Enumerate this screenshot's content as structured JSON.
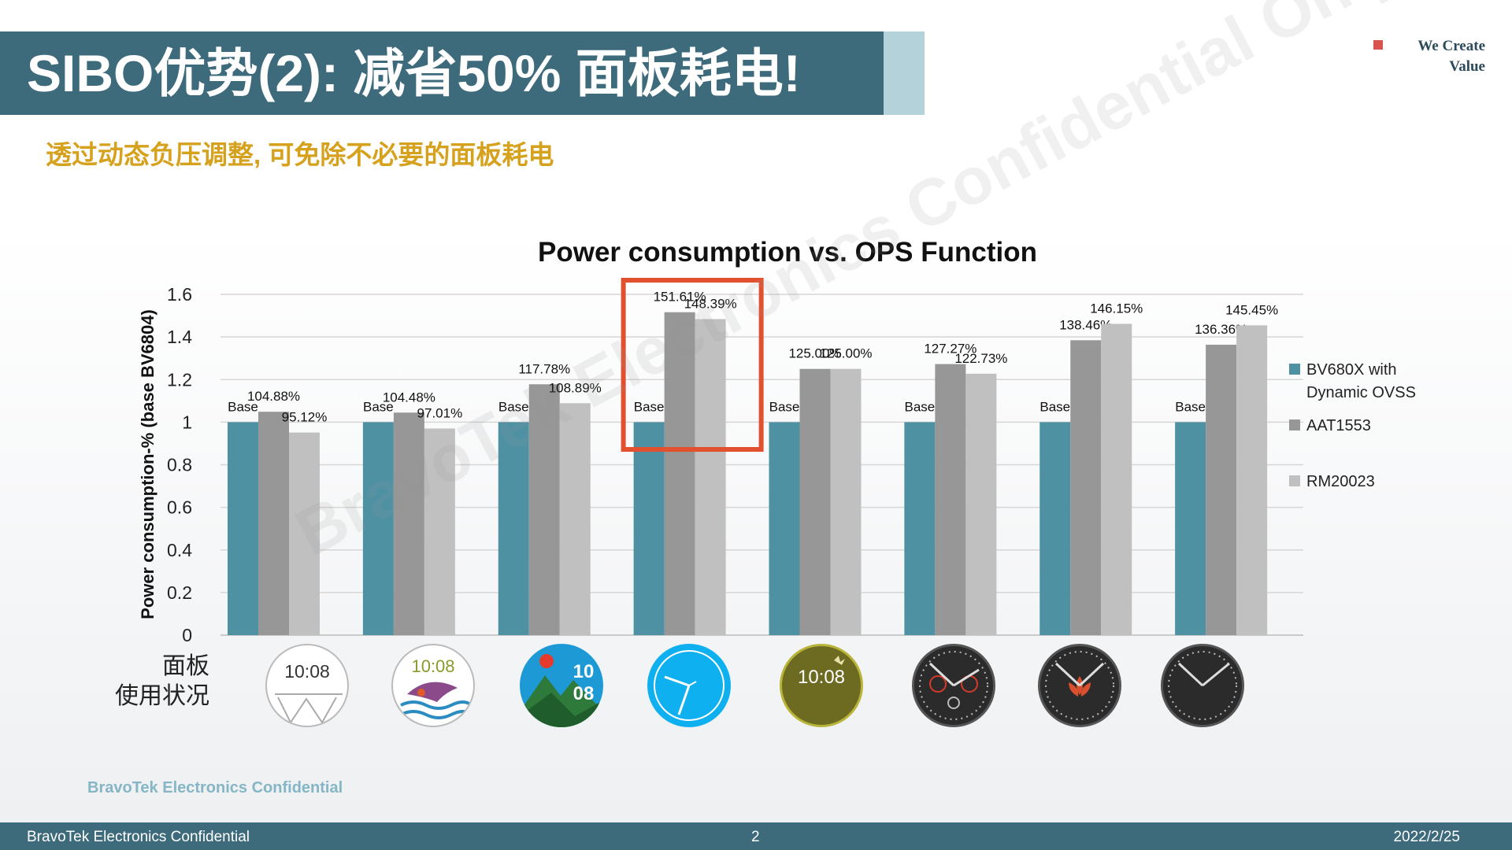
{
  "slide": {
    "title": "SIBO优势(2): 减省50% 面板耗电!",
    "brand_line1": "We Create",
    "brand_line2": "Value",
    "subtitle": "透过动态负压调整, 可免除不必要的面板耗电",
    "panel_label_line1": "面板",
    "panel_label_line2": "使用状况",
    "confidential_note": "BravoTek Electronics Confidential",
    "watermark": "BravoTek Electronics Confidential Only for",
    "footer": {
      "left": "BravoTek Electronics Confidential",
      "page": "2",
      "date": "2022/2/25"
    },
    "watch_faces": [
      {
        "name": "white-line-face",
        "time": "10:08"
      },
      {
        "name": "dolphin-face",
        "time": "10:08"
      },
      {
        "name": "mountain-face",
        "hour": "10",
        "minute": "08"
      },
      {
        "name": "blue-analog-face"
      },
      {
        "name": "olive-digital-face",
        "time": "10:08"
      },
      {
        "name": "dark-gauge-face"
      },
      {
        "name": "dark-lotus-face"
      },
      {
        "name": "dark-analog-face"
      }
    ]
  },
  "chart_data": {
    "type": "bar",
    "title": "Power consumption vs. OPS Function",
    "ylabel": "Power consumption-% (base BV6804)",
    "ylim": [
      0,
      1.6
    ],
    "yticks": [
      "0",
      "0.2",
      "0.4",
      "0.6",
      "0.8",
      "1",
      "1.2",
      "1.4",
      "1.6"
    ],
    "grid": true,
    "legend_position": "right",
    "highlight_group": 3,
    "group_count": 8,
    "series": [
      {
        "name": "BV680X with Dynamic OVSS",
        "color": "#4e91a3",
        "values": [
          1,
          1,
          1,
          1,
          1,
          1,
          1,
          1
        ],
        "labels": [
          "Base",
          "Base",
          "Base",
          "Base",
          "Base",
          "Base",
          "Base",
          "Base"
        ]
      },
      {
        "name": "AAT1553",
        "color": "#979797",
        "values": [
          1.0488,
          1.0448,
          1.1778,
          1.5161,
          1.25,
          1.2727,
          1.3846,
          1.3636
        ],
        "labels": [
          "104.88%",
          "104.48%",
          "117.78%",
          "151.61%",
          "125.00%",
          "127.27%",
          "138.46%",
          "136.36%"
        ]
      },
      {
        "name": "RM20023",
        "color": "#c0c0c0",
        "values": [
          0.9512,
          0.9701,
          1.0889,
          1.4839,
          1.25,
          1.2273,
          1.4615,
          1.4545
        ],
        "labels": [
          "95.12%",
          "97.01%",
          "108.89%",
          "148.39%",
          "125.00%",
          "122.73%",
          "146.15%",
          "145.45%"
        ]
      }
    ]
  }
}
